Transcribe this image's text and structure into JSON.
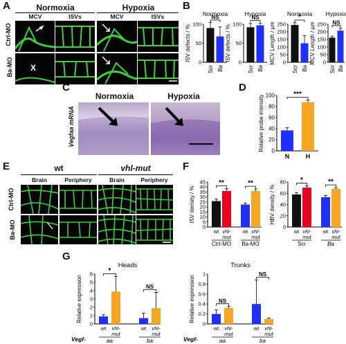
{
  "panels": {
    "A": {
      "letter": "A",
      "normoxia": "Normoxia",
      "hypoxia": "Hypoxia",
      "sub1": "MCV",
      "sub2": "ISVs",
      "sub3": "MCV",
      "sub4": "ISVs",
      "row1": "Ctrl-MO",
      "row2": "Ba-MO",
      "x_mark": "X"
    },
    "B": {
      "letter": "B"
    },
    "C": {
      "letter": "C",
      "normoxia": "Normoxia",
      "hypoxia": "Hypoxia",
      "ylabel": "Vegfaa mRNA"
    },
    "D": {
      "letter": "D"
    },
    "E": {
      "letter": "E",
      "wt": "wt",
      "vhl": "vhl-mut",
      "sub1": "Brain",
      "sub2": "Periphery",
      "sub3": "Brain",
      "sub4": "Periphery",
      "row1": "Ctrl-MO",
      "row2": "Ba-MO"
    },
    "F": {
      "letter": "F"
    },
    "G": {
      "letter": "G",
      "vegf_label1": "Vegf-",
      "vegf_label2": "Vegf-"
    }
  },
  "colors": {
    "black": "#111111",
    "blue": "#1f2fff",
    "red": "#e8001c",
    "orange": "#f5a623",
    "green": "#3cd23c"
  },
  "chart_data": [
    {
      "id": "B1",
      "type": "bar",
      "title": "Normoxia",
      "ylabel": "ISV defects / %",
      "categories": [
        "Scr",
        "Ba"
      ],
      "values": [
        90,
        68
      ],
      "errors": [
        15,
        25
      ],
      "colors": [
        "#111111",
        "#1f2fff"
      ],
      "ylim": [
        0,
        100
      ],
      "yticks": [
        0,
        50,
        100
      ],
      "sig": "NS"
    },
    {
      "id": "B2",
      "type": "bar",
      "title": "Hypoxia",
      "ylabel": "ISV defects / %",
      "categories": [
        "Scr",
        "Ba"
      ],
      "values": [
        92,
        97
      ],
      "errors": [
        10,
        6
      ],
      "colors": [
        "#111111",
        "#1f2fff"
      ],
      "ylim": [
        0,
        100
      ],
      "yticks": [
        0,
        50,
        100
      ],
      "sig": "NS"
    },
    {
      "id": "B3",
      "type": "bar",
      "title": "Normoxia",
      "ylabel": "MCV Length / µm",
      "categories": [
        "Scr",
        "Ba"
      ],
      "values": [
        245,
        125
      ],
      "errors": [
        15,
        50
      ],
      "colors": [
        "#111111",
        "#1f2fff"
      ],
      "ylim": [
        0,
        250
      ],
      "yticks": [
        0,
        50,
        100,
        150,
        200,
        250
      ],
      "sig": "*"
    },
    {
      "id": "B4",
      "type": "bar",
      "title": "Hypoxia",
      "ylabel": "MCV Length / µm",
      "categories": [
        "Scr",
        "Ba"
      ],
      "values": [
        162,
        208
      ],
      "errors": [
        10,
        15
      ],
      "colors": [
        "#111111",
        "#1f2fff"
      ],
      "ylim": [
        0,
        250
      ],
      "yticks": [
        0,
        50,
        100,
        150,
        200,
        250
      ],
      "sig": "NS"
    },
    {
      "id": "D",
      "type": "bar",
      "title": "",
      "ylabel": "Relative probe intensity",
      "categories": [
        "N",
        "H"
      ],
      "values": [
        37,
        88
      ],
      "errors": [
        5,
        4
      ],
      "colors": [
        "#1f2fff",
        "#f5a623"
      ],
      "ylim": [
        0,
        100
      ],
      "yticks": [
        0,
        20,
        40,
        60,
        80,
        100
      ],
      "sig": "***"
    },
    {
      "id": "F1",
      "type": "bar",
      "title": "",
      "ylabel": "ISV density / %",
      "categories": [
        "wt",
        "vhl-mut",
        "wt",
        "vhl-mut"
      ],
      "groups": [
        "Ctrl-MO",
        "Ba-MO"
      ],
      "values": [
        26,
        36,
        22.5,
        36
      ],
      "errors": [
        2,
        2.5,
        1.5,
        2
      ],
      "colors": [
        "#111111",
        "#e8001c",
        "#1f2fff",
        "#f5a623"
      ],
      "ylim": [
        0,
        45
      ],
      "yticks": [
        0,
        5,
        10,
        15,
        20,
        25,
        30,
        35,
        40,
        45
      ],
      "sigs": [
        "**",
        "**"
      ]
    },
    {
      "id": "F2",
      "type": "bar",
      "title": "",
      "ylabel": "HBV density / %",
      "categories": [
        "wt",
        "vhl-mut",
        "wt",
        "vhl-mut"
      ],
      "groups": [
        "Scr",
        "Ba"
      ],
      "values": [
        58,
        70,
        53,
        68
      ],
      "errors": [
        3,
        3,
        3,
        2
      ],
      "colors": [
        "#111111",
        "#e8001c",
        "#1f2fff",
        "#f5a623"
      ],
      "ylim": [
        0,
        80
      ],
      "yticks": [
        0,
        20,
        40,
        60,
        80
      ],
      "sigs": [
        "*",
        "**"
      ]
    },
    {
      "id": "G1",
      "type": "bar",
      "title": "Heads",
      "ylabel": "Relative expression",
      "categories": [
        "wt",
        "vhl-mut",
        "wt",
        "vhl-mut"
      ],
      "groups": [
        "aa",
        "ba"
      ],
      "values": [
        0.9,
        3.9,
        0.7,
        1.9
      ],
      "errors": [
        0.2,
        1.8,
        0.6,
        1.9
      ],
      "colors": [
        "#1f2fff",
        "#f5a623",
        "#1f2fff",
        "#f5a623"
      ],
      "ylim": [
        0,
        6
      ],
      "yticks": [
        0,
        1,
        2,
        3,
        4,
        5,
        6
      ],
      "sigs": [
        "*",
        "NS"
      ]
    },
    {
      "id": "G2",
      "type": "bar",
      "title": "Trunks",
      "ylabel": "Relative expression",
      "categories": [
        "wt",
        "vhl-mut",
        "wt",
        "vhl-mut"
      ],
      "groups": [
        "aa",
        "ba"
      ],
      "values": [
        0.2,
        0.32,
        0.4,
        0.1
      ],
      "errors": [
        0.08,
        0.03,
        0.48,
        0.02
      ],
      "colors": [
        "#1f2fff",
        "#f5a623",
        "#1f2fff",
        "#f5a623"
      ],
      "ylim": [
        0,
        1
      ],
      "yticks": [
        0,
        0.2,
        0.4,
        0.6,
        0.8,
        1
      ],
      "sigs": [
        "NS",
        "NS"
      ]
    }
  ]
}
